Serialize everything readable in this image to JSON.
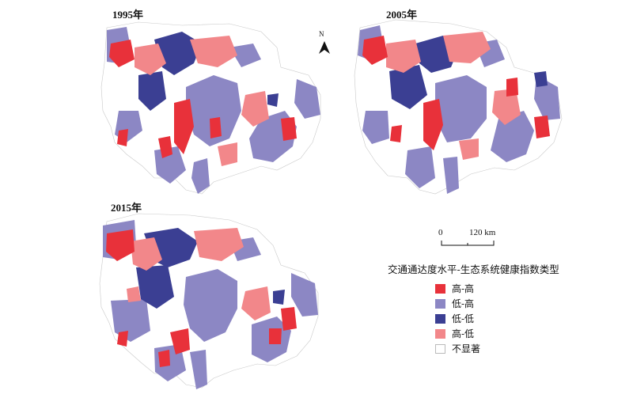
{
  "panels": [
    {
      "title": "1995年"
    },
    {
      "title": "2005年"
    },
    {
      "title": "2015年"
    }
  ],
  "north_arrow": {
    "label": "N"
  },
  "scale": {
    "start": "0",
    "end": "120 km"
  },
  "legend": {
    "title": "交通通达度水平-生态系统健康指数类型",
    "items": [
      {
        "label": "高-高",
        "color": "#e8313a"
      },
      {
        "label": "低-高",
        "color": "#8c87c4"
      },
      {
        "label": "低-低",
        "color": "#3b3f93"
      },
      {
        "label": "高-低",
        "color": "#f2878a"
      },
      {
        "label": "不显著",
        "color": "#ffffff"
      }
    ]
  },
  "colors": {
    "outline": "#c9c9c9"
  }
}
